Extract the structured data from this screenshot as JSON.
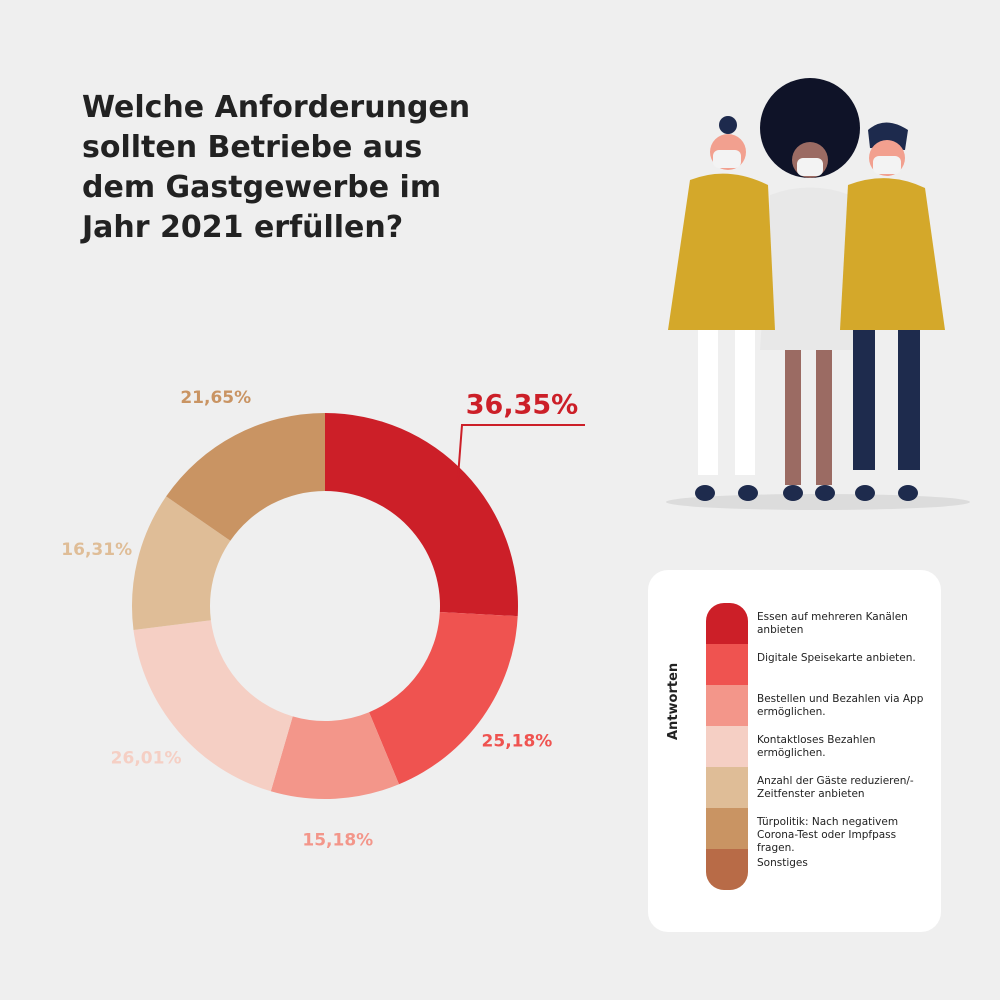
{
  "chart_data": {
    "type": "donut",
    "title": "Welche Anforderungen sollten Betriebe aus dem Gastgewerbe im Jahr 2021 erfüllen?",
    "legend_title": "Antworten",
    "categories": [
      "Essen auf mehreren Kanälen anbieten",
      "Digitale Speisekarte anbieten.",
      "Bestellen und Bezahlen via App ermöglichen.",
      "Kontaktloses Bezahlen ermöglichen.",
      "Anzahl der Gäste reduzieren/-Zeitfenster anbieten",
      "Türpolitik: Nach negativem Corona-Test oder Impfpass fragen.",
      "Sonstiges"
    ],
    "values": [
      36.35,
      25.18,
      15.18,
      26.01,
      16.31,
      21.65,
      null
    ],
    "value_labels": [
      "36,35%",
      "25,18%",
      "15,18%",
      "26,01%",
      "16,31%",
      "21,65%",
      null
    ],
    "colors": [
      "#cc1f28",
      "#ef5350",
      "#f3968a",
      "#f5cfc4",
      "#dfbd97",
      "#c99463",
      "#b86b47"
    ]
  }
}
